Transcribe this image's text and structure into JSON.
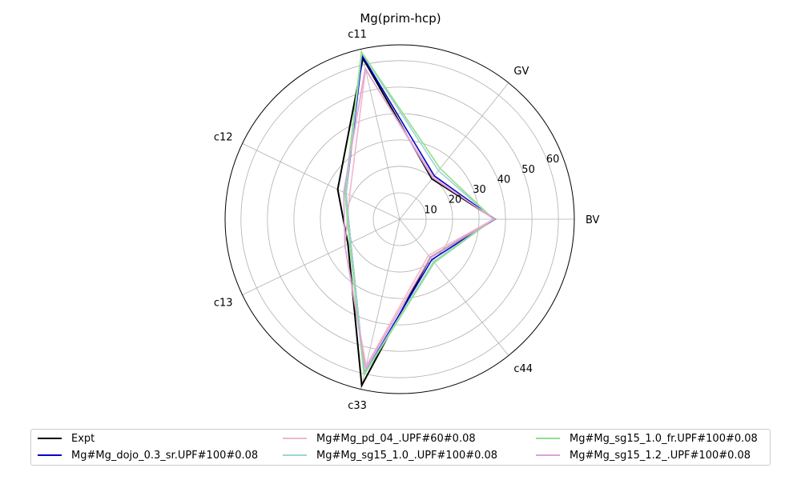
{
  "chart_data": {
    "type": "radar",
    "title": "Mg(prim-hcp)",
    "axes": [
      "BV",
      "GV",
      "c11",
      "c12",
      "c13",
      "c33",
      "c44"
    ],
    "radial_ticks": [
      10,
      20,
      30,
      40,
      50,
      60
    ],
    "rlim": [
      0,
      66
    ],
    "grid": true,
    "legend_position": "bottom",
    "series": [
      {
        "name": "Expt",
        "color": "#000000",
        "values": [
          36.0,
          19.5,
          62.5,
          26.0,
          21.7,
          64.5,
          18.5
        ]
      },
      {
        "name": "Mg#Mg_dojo_0.3_sr.UPF#100#0.08",
        "color": "#0000cc",
        "values": [
          36.0,
          21.0,
          63.5,
          22.5,
          20.5,
          60.0,
          19.5
        ]
      },
      {
        "name": "Mg#Mg_pd_04_.UPF#60#0.08",
        "color": "#f4b6c8",
        "values": [
          35.5,
          20.5,
          58.0,
          21.0,
          23.0,
          57.0,
          17.5
        ]
      },
      {
        "name": "Mg#Mg_sg15_1.0_.UPF#100#0.08",
        "color": "#9fd3d8",
        "values": [
          35.5,
          23.5,
          64.5,
          22.5,
          20.5,
          60.0,
          20.5
        ]
      },
      {
        "name": "Mg#Mg_sg15_1.0_fr.UPF#100#0.08",
        "color": "#8fe08a",
        "values": [
          35.5,
          24.5,
          65.0,
          23.0,
          21.0,
          60.5,
          21.0
        ]
      },
      {
        "name": "Mg#Mg_sg15_1.2_.UPF#100#0.08",
        "color": "#d9a4d9",
        "values": [
          36.0,
          20.0,
          58.5,
          23.5,
          23.0,
          58.0,
          18.5
        ]
      }
    ]
  }
}
